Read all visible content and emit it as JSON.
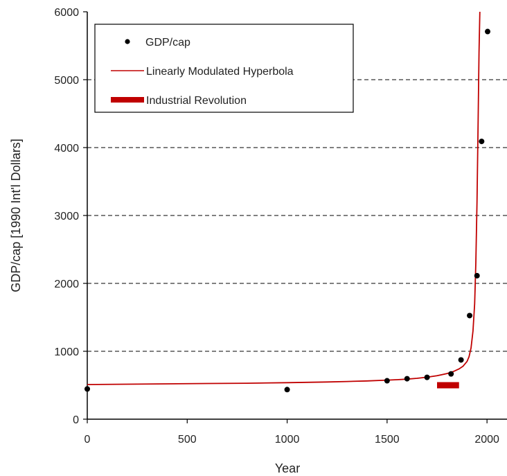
{
  "chart_data": {
    "type": "scatter",
    "title": "",
    "xlabel": "Year",
    "ylabel": "GDP/cap [1990 Int'l Dollars]",
    "xlim": [
      0,
      2100
    ],
    "ylim": [
      0,
      6000
    ],
    "xticks": [
      0,
      500,
      1000,
      1500,
      2000
    ],
    "yticks": [
      0,
      1000,
      2000,
      3000,
      4000,
      5000,
      6000
    ],
    "grid": "dashed horizontal at 1000, 2000, 4000, 5000",
    "legend_position": "top-left",
    "series": [
      {
        "name": "GDP/cap",
        "kind": "scatter",
        "color": "#000000",
        "x": [
          0,
          1000,
          1500,
          1600,
          1700,
          1820,
          1870,
          1913,
          1950,
          1973,
          2003
        ],
        "y": [
          445,
          436,
          566,
          596,
          616,
          667,
          873,
          1526,
          2113,
          4091,
          5709
        ]
      },
      {
        "name": "Linearly Modulated Hyperbola",
        "kind": "line",
        "color": "#c00000",
        "x": [
          0,
          200,
          400,
          600,
          800,
          1000,
          1200,
          1300,
          1400,
          1500,
          1550,
          1600,
          1650,
          1700,
          1750,
          1800,
          1830,
          1860,
          1880,
          1900,
          1910,
          1920,
          1930,
          1938,
          1944,
          1950,
          1955,
          1960,
          1965
        ],
        "y": [
          510,
          515,
          520,
          525,
          530,
          538,
          548,
          555,
          563,
          575,
          582,
          590,
          602,
          618,
          640,
          672,
          700,
          740,
          780,
          850,
          920,
          1050,
          1300,
          1700,
          2300,
          3200,
          4300,
          5400,
          6100
        ]
      },
      {
        "name": "Industrial Revolution",
        "kind": "span",
        "color": "#c00000",
        "x": [
          1750,
          1860
        ],
        "y": [
          500,
          500
        ]
      }
    ]
  }
}
